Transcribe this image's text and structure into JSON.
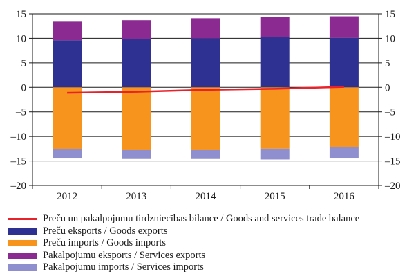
{
  "chart_data": {
    "type": "bar",
    "stacked": true,
    "categories": [
      "2012",
      "2013",
      "2014",
      "2015",
      "2016"
    ],
    "ylim": [
      -20,
      15
    ],
    "yticks": [
      15,
      10,
      5,
      0,
      -5,
      -10,
      -15,
      -20
    ],
    "ytick_labels": [
      "15",
      "10",
      "5",
      "0",
      "–5",
      "–10",
      "–15",
      "–20"
    ],
    "grid": true,
    "right_axis": true,
    "legend_position": "bottom",
    "series": [
      {
        "name": "Preču eksports / Goods exports",
        "kind": "bar",
        "color": "#2e3192",
        "values": [
          9.6,
          9.8,
          10.0,
          10.2,
          10.1
        ]
      },
      {
        "name": "Pakalpojumu eksports / Services exports",
        "kind": "bar",
        "color": "#8b2a91",
        "values": [
          3.8,
          3.9,
          4.1,
          4.2,
          4.4
        ]
      },
      {
        "name": "Preču imports / Goods imports",
        "kind": "bar",
        "color": "#f7941d",
        "values": [
          -12.6,
          -12.8,
          -12.8,
          -12.5,
          -12.2
        ]
      },
      {
        "name": "Pakalpojumu imports / Services imports",
        "kind": "bar",
        "color": "#8f8fcf",
        "values": [
          -1.9,
          -1.8,
          -1.8,
          -2.2,
          -2.3
        ]
      },
      {
        "name": "Preču un pakalpojumu tirdzniecības bilance / Goods and services trade balance",
        "kind": "line",
        "color": "#e8212a",
        "values": [
          -1.1,
          -0.9,
          -0.5,
          -0.3,
          0.1
        ]
      }
    ]
  },
  "legend": [
    {
      "label": "Preču un pakalpojumu tirdzniecības bilance / Goods and services trade balance",
      "color": "#e8212a",
      "kind": "line"
    },
    {
      "label": "Preču eksports / Goods exports",
      "color": "#2e3192",
      "kind": "bar"
    },
    {
      "label": "Preču imports / Goods imports",
      "color": "#f7941d",
      "kind": "bar"
    },
    {
      "label": "Pakalpojumu eksports / Services exports",
      "color": "#8b2a91",
      "kind": "bar"
    },
    {
      "label": "Pakalpojumu imports / Services imports",
      "color": "#8f8fcf",
      "kind": "bar"
    }
  ]
}
